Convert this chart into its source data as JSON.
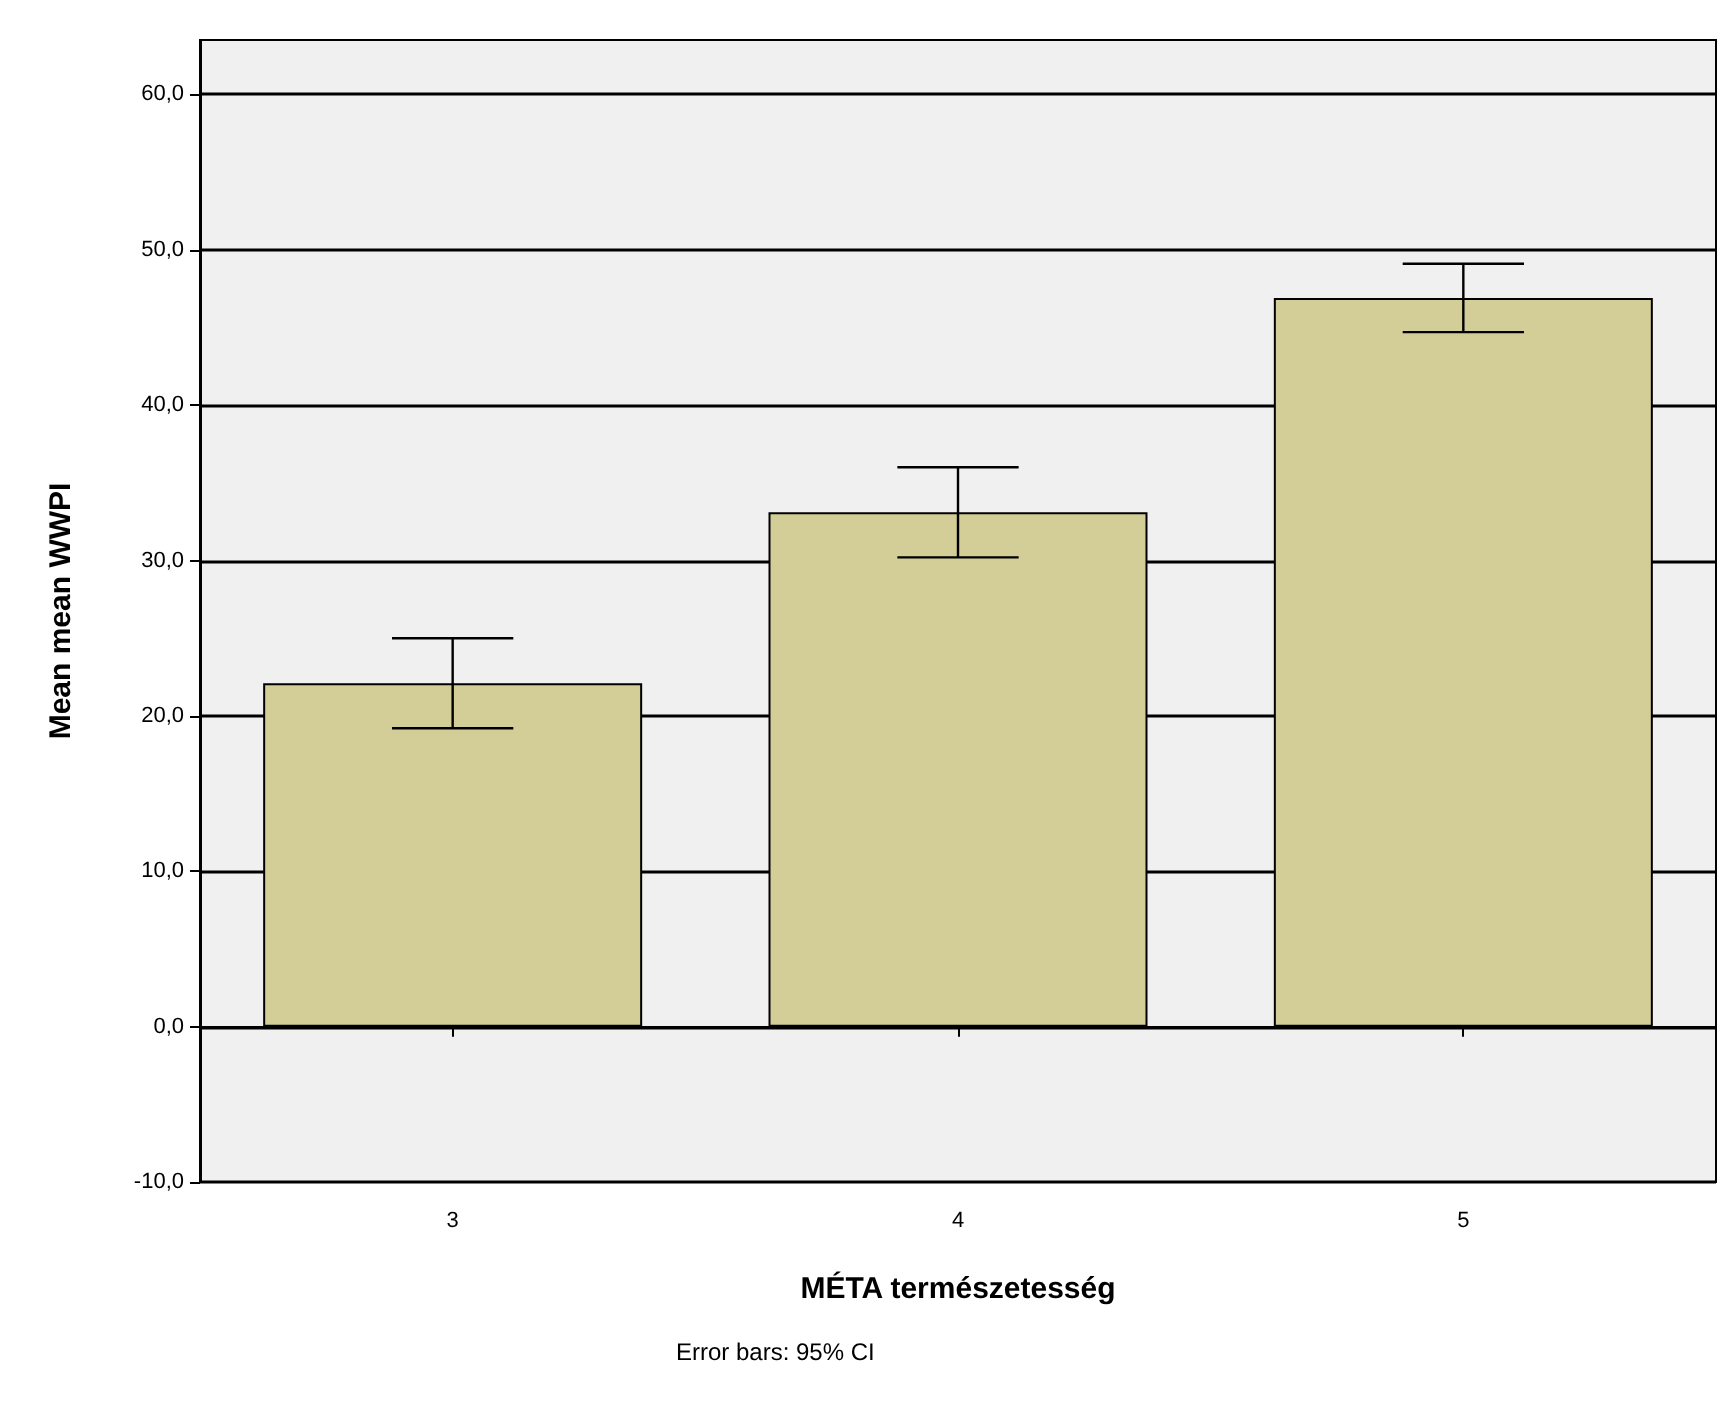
{
  "chart_data": {
    "type": "bar",
    "categories": [
      "3",
      "4",
      "5"
    ],
    "values": [
      22.1,
      33.1,
      46.9
    ],
    "color": "#d3ce97",
    "errors": [
      2.9,
      2.9,
      2.2
    ],
    "xlabel": "MÉTA természetesség",
    "ylabel": "Mean mean WWPI",
    "ylim": [
      -10,
      63.5
    ],
    "yticks": [
      {
        "value": -10,
        "label": "-10,0"
      },
      {
        "value": 0,
        "label": "0,0"
      },
      {
        "value": 10,
        "label": "10,0"
      },
      {
        "value": 20,
        "label": "20,0"
      },
      {
        "value": 30,
        "label": "30,0"
      },
      {
        "value": 40,
        "label": "40,0"
      },
      {
        "value": 50,
        "label": "50,0"
      },
      {
        "value": 60,
        "label": "60,0"
      }
    ],
    "grid": "y",
    "annotations": [
      "Error bars: 95% CI"
    ]
  }
}
